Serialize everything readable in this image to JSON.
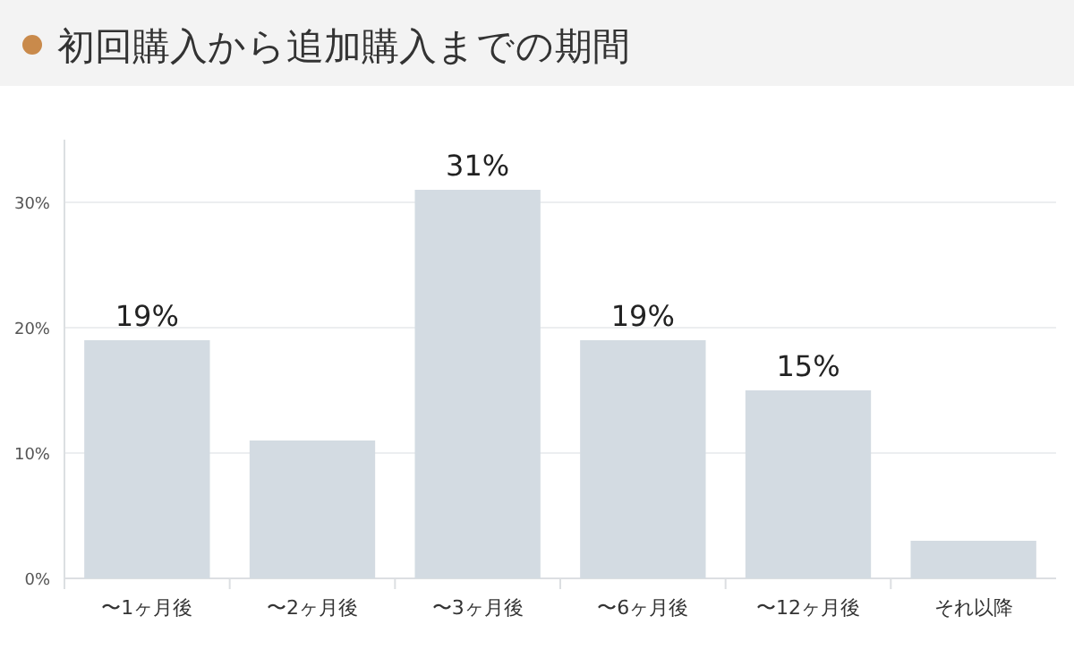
{
  "chart_data": {
    "type": "bar",
    "title": "初回購入から追加購入までの期間",
    "categories": [
      "〜1ヶ月後",
      "〜2ヶ月後",
      "〜3ヶ月後",
      "〜6ヶ月後",
      "〜12ヶ月後",
      "それ以降"
    ],
    "values": [
      19,
      11,
      31,
      19,
      15,
      3
    ],
    "value_labels": [
      "19%",
      null,
      "31%",
      "19%",
      "15%",
      null
    ],
    "color": "#d3dbe2",
    "ylim": [
      0,
      35
    ],
    "yticks": [
      {
        "value": 0,
        "label": "0%"
      },
      {
        "value": 10,
        "label": "10%"
      },
      {
        "value": 20,
        "label": "20%"
      },
      {
        "value": 30,
        "label": "30%"
      }
    ],
    "grid": "y"
  }
}
